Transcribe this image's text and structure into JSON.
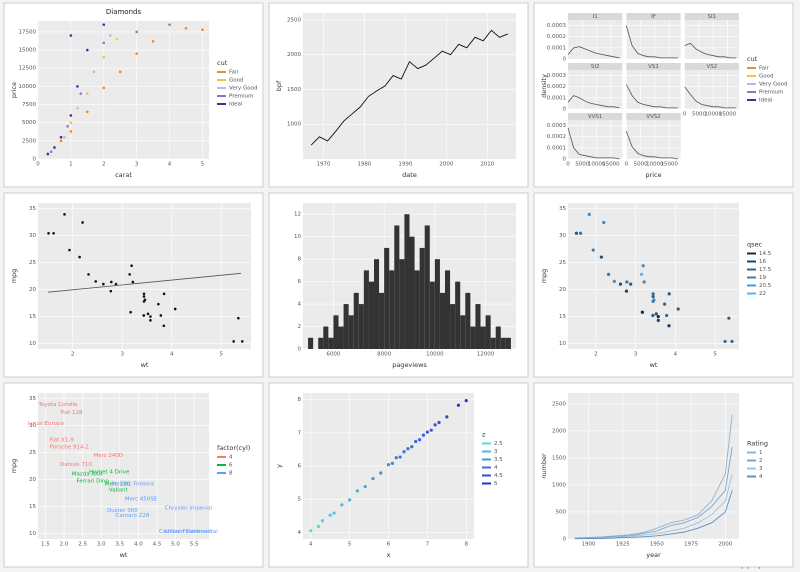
{
  "chart_data": [
    {
      "type": "scatter",
      "title": "Diamonds",
      "xlabel": "carat",
      "ylabel": "price",
      "xlim": [
        0,
        5.2
      ],
      "xticks": [
        0,
        1,
        2,
        3,
        4,
        5
      ],
      "ylim": [
        0,
        19000
      ],
      "yticks": [
        0,
        2500,
        5000,
        7500,
        10000,
        12500,
        15000,
        17500
      ],
      "legend_title": "cut",
      "series": [
        {
          "name": "Fair",
          "color": "#f08a24",
          "x": [
            0.7,
            1.0,
            1.5,
            2.0,
            2.5,
            3.0,
            3.5,
            4.5,
            5.0
          ],
          "values": [
            2500,
            3800,
            6500,
            9800,
            12000,
            14500,
            16200,
            18000,
            17800
          ]
        },
        {
          "name": "Good",
          "color": "#f5c242",
          "x": [
            0.5,
            1.0,
            1.5,
            2.0,
            2.4
          ],
          "values": [
            1500,
            5000,
            9000,
            14000,
            16500
          ]
        },
        {
          "name": "Very Good",
          "color": "#c9b3e6",
          "x": [
            0.3,
            0.8,
            1.2,
            1.7,
            2.2
          ],
          "values": [
            600,
            3000,
            7000,
            12000,
            17000
          ]
        },
        {
          "name": "Premium",
          "color": "#9272c8",
          "x": [
            0.4,
            0.9,
            1.3,
            2.0,
            3.0,
            4.0
          ],
          "values": [
            1000,
            4500,
            9000,
            16000,
            17500,
            18500
          ]
        },
        {
          "name": "Ideal",
          "color": "#4a2b96",
          "x": [
            0.3,
            0.5,
            0.7,
            1.0,
            1.0,
            1.2,
            1.5,
            2.0
          ],
          "values": [
            700,
            1600,
            3000,
            6000,
            17000,
            10000,
            15000,
            18500
          ]
        }
      ]
    },
    {
      "type": "line",
      "xlabel": "date",
      "ylabel": "bpf",
      "color": "#111111",
      "xlim": [
        1965,
        2017
      ],
      "xticks": [
        1970,
        1980,
        1990,
        2000,
        2010
      ],
      "ylim": [
        500,
        2600
      ],
      "yticks": [
        1000,
        1500,
        2000,
        2500
      ],
      "x": [
        1967,
        1969,
        1971,
        1973,
        1975,
        1977,
        1979,
        1981,
        1983,
        1985,
        1987,
        1989,
        1991,
        1993,
        1995,
        1997,
        1999,
        2001,
        2003,
        2005,
        2007,
        2009,
        2011,
        2013,
        2015
      ],
      "values": [
        700,
        820,
        760,
        900,
        1050,
        1150,
        1250,
        1400,
        1480,
        1550,
        1700,
        1650,
        1900,
        1800,
        1850,
        1950,
        2050,
        2000,
        2150,
        2100,
        2250,
        2200,
        2350,
        2250,
        2300
      ]
    },
    {
      "type": "facet-line",
      "xlabel": "price",
      "ylabel": "density",
      "line_color": "#555555",
      "x": [
        0,
        2000,
        4000,
        6000,
        8000,
        10000,
        12000,
        14000,
        16000,
        18000
      ],
      "xlim": [
        0,
        19000
      ],
      "xticks": [
        0,
        5000,
        10000,
        15000
      ],
      "ylim": [
        0,
        0.00035
      ],
      "yticks": [
        0,
        0.0001,
        0.0002,
        0.0003
      ],
      "legend_title": "cut",
      "legend_labels": [
        "Fair",
        "Good",
        "Very Good",
        "Premium",
        "Ideal"
      ],
      "legend_colors": [
        "#f08a24",
        "#f5c242",
        "#c9b3e6",
        "#9272c8",
        "#4a2b96"
      ],
      "facets": [
        {
          "title": "I1",
          "values": [
            4e-05,
            0.0001,
            0.00011,
            9e-05,
            7e-05,
            5e-05,
            4e-05,
            3e-05,
            2e-05,
            1e-05
          ]
        },
        {
          "title": "IF",
          "values": [
            0.0003,
            0.00012,
            5e-05,
            3e-05,
            2e-05,
            2e-05,
            1e-05,
            1e-05,
            1e-05,
            1e-05
          ]
        },
        {
          "title": "SI1",
          "values": [
            0.00012,
            0.00014,
            9e-05,
            6e-05,
            4e-05,
            3e-05,
            2e-05,
            2e-05,
            1e-05,
            1e-05
          ]
        },
        {
          "title": "SI2",
          "values": [
            6e-05,
            0.00012,
            0.0001,
            7e-05,
            5e-05,
            4e-05,
            3e-05,
            2e-05,
            2e-05,
            1e-05
          ]
        },
        {
          "title": "VS1",
          "values": [
            0.00022,
            0.00012,
            6e-05,
            4e-05,
            3e-05,
            2e-05,
            2e-05,
            1e-05,
            1e-05,
            1e-05
          ]
        },
        {
          "title": "VS2",
          "values": [
            0.0002,
            0.00013,
            7e-05,
            4e-05,
            3e-05,
            2e-05,
            2e-05,
            1e-05,
            1e-05,
            1e-05
          ]
        },
        {
          "title": "VVS1",
          "values": [
            0.00028,
            0.0001,
            4e-05,
            3e-05,
            2e-05,
            1e-05,
            1e-05,
            1e-05,
            1e-05,
            0
          ]
        },
        {
          "title": "VVS2",
          "values": [
            0.00025,
            0.00011,
            5e-05,
            3e-05,
            2e-05,
            2e-05,
            1e-05,
            1e-05,
            1e-05,
            0
          ]
        }
      ]
    },
    {
      "type": "scatter",
      "xlabel": "wt",
      "ylabel": "mpg",
      "color": "#111111",
      "xlim": [
        1.3,
        5.6
      ],
      "xticks": [
        2,
        3,
        4,
        5
      ],
      "ylim": [
        9,
        36
      ],
      "yticks": [
        10,
        15,
        20,
        25,
        30,
        35
      ],
      "x": [
        2.62,
        2.875,
        2.32,
        3.215,
        3.44,
        3.46,
        3.57,
        3.19,
        3.15,
        3.44,
        3.44,
        4.07,
        3.73,
        3.78,
        5.25,
        5.424,
        5.345,
        2.2,
        1.615,
        1.835,
        2.465,
        3.52,
        3.435,
        3.84,
        3.845,
        1.935,
        2.14,
        1.513,
        3.17,
        2.77,
        3.57,
        2.78
      ],
      "values": [
        21,
        21,
        22.8,
        21.4,
        18.7,
        18.1,
        14.3,
        24.4,
        22.8,
        19.2,
        17.8,
        16.4,
        17.3,
        15.2,
        10.4,
        10.4,
        14.7,
        32.4,
        30.4,
        33.9,
        21.5,
        15.5,
        15.2,
        13.3,
        19.2,
        27.3,
        26,
        30.4,
        15.8,
        19.7,
        15,
        21.4
      ],
      "fit": {
        "color": "#555555",
        "x": [
          1.5,
          5.4
        ],
        "y": [
          19.5,
          23
        ]
      }
    },
    {
      "type": "histogram",
      "xlabel": "pageviews",
      "color": "#333333",
      "xlim": [
        4800,
        13200
      ],
      "xticks": [
        6000,
        8000,
        10000,
        12000
      ],
      "ylim": [
        0,
        13
      ],
      "yticks": [
        0,
        2,
        4,
        6,
        8,
        10,
        12
      ],
      "bins": [
        5000,
        5200,
        5400,
        5600,
        5800,
        6000,
        6200,
        6400,
        6600,
        6800,
        7000,
        7200,
        7400,
        7600,
        7800,
        8000,
        8200,
        8400,
        8600,
        8800,
        9000,
        9200,
        9400,
        9600,
        9800,
        10000,
        10200,
        10400,
        10600,
        10800,
        11000,
        11200,
        11400,
        11600,
        11800,
        12000,
        12200,
        12400,
        12600,
        12800,
        13000
      ],
      "values": [
        1,
        0,
        1,
        2,
        1,
        3,
        2,
        4,
        3,
        5,
        4,
        7,
        6,
        8,
        5,
        9,
        7,
        11,
        8,
        12,
        10,
        7,
        9,
        11,
        6,
        8,
        5,
        7,
        4,
        6,
        3,
        5,
        2,
        4,
        2,
        3,
        1,
        2,
        1,
        1
      ]
    },
    {
      "type": "scatter",
      "xlabel": "wt",
      "ylabel": "mpg",
      "xlim": [
        1.3,
        5.6
      ],
      "xticks": [
        2,
        3,
        4,
        5
      ],
      "ylim": [
        9,
        36
      ],
      "yticks": [
        10,
        15,
        20,
        25,
        30,
        35
      ],
      "x": [
        2.62,
        2.875,
        2.32,
        3.215,
        3.44,
        3.46,
        3.57,
        3.19,
        3.15,
        3.44,
        3.44,
        4.07,
        3.73,
        3.78,
        5.25,
        5.424,
        5.345,
        2.2,
        1.615,
        1.835,
        2.465,
        3.52,
        3.435,
        3.84,
        3.845,
        1.935,
        2.14,
        1.513,
        3.17,
        2.77,
        3.57,
        2.78
      ],
      "values": [
        21,
        21,
        22.8,
        21.4,
        18.7,
        18.1,
        14.3,
        24.4,
        22.8,
        19.2,
        17.8,
        16.4,
        17.3,
        15.2,
        10.4,
        10.4,
        14.7,
        32.4,
        30.4,
        33.9,
        21.5,
        15.5,
        15.2,
        13.3,
        19.2,
        27.3,
        26,
        30.4,
        15.8,
        19.7,
        15,
        21.4
      ],
      "color_by": [
        16.46,
        17.02,
        18.61,
        19.44,
        17.02,
        20.22,
        15.84,
        20,
        22.9,
        18.3,
        18.9,
        17.4,
        17.6,
        18,
        17.98,
        17.82,
        17.42,
        19.47,
        18.52,
        19.9,
        20.01,
        16.87,
        17.3,
        15.41,
        17.05,
        18.9,
        16.7,
        16.9,
        14.5,
        15.5,
        14.6,
        18.6
      ],
      "color_low": "#132b43",
      "color_high": "#56b1f7",
      "legend_title": "qsec",
      "legend_values": [
        14.5,
        16,
        17.5,
        19,
        20.5,
        22
      ]
    },
    {
      "type": "text-scatter",
      "xlabel": "wt",
      "ylabel": "mpg",
      "xlim": [
        1.3,
        5.9
      ],
      "xticks": [
        1.5,
        {
          "value": 2,
          "label": "2.0"
        },
        2.5,
        {
          "value": 3,
          "label": "3.0"
        },
        3.5,
        {
          "value": 4,
          "label": "4.0"
        },
        4.5,
        {
          "value": 5,
          "label": "5.0"
        },
        5.5
      ],
      "ylim": [
        9,
        36
      ],
      "yticks": [
        10,
        15,
        20,
        25,
        30,
        35
      ],
      "legend_title": "factor(cyl)",
      "series": [
        {
          "name": "4",
          "color": "#f8766d",
          "labels": [
            "Toyota Corolla",
            "Fiat 128",
            "Lotus Europa",
            "Fiat X1-9",
            "Porsche 914-2",
            "Datsun 710",
            "Merc 240D"
          ],
          "x": [
            1.835,
            2.2,
            1.513,
            1.935,
            2.14,
            2.32,
            3.19
          ],
          "values": [
            33.9,
            32.4,
            30.4,
            27.3,
            26,
            22.8,
            24.4
          ]
        },
        {
          "name": "6",
          "color": "#00ba38",
          "labels": [
            "Mazda RX4",
            "Hornet 4 Drive",
            "Valiant",
            "Merc 280",
            "Ferrari Dino"
          ],
          "x": [
            2.62,
            3.215,
            3.46,
            3.44,
            2.77
          ],
          "values": [
            21,
            21.4,
            18.1,
            19.2,
            19.7
          ]
        },
        {
          "name": "8",
          "color": "#619cff",
          "labels": [
            "Duster 360",
            "Merc 450SE",
            "Camaro Z28",
            "Pontiac Firebird",
            "Cadillac Fleetwood",
            "Lincoln Continental",
            "Chrysler Imperial"
          ],
          "x": [
            3.57,
            4.07,
            3.84,
            3.845,
            5.25,
            5.424,
            5.345
          ],
          "values": [
            14.3,
            16.4,
            13.3,
            19.2,
            10.4,
            10.4,
            14.7
          ]
        }
      ]
    },
    {
      "type": "scatter",
      "xlabel": "x",
      "ylabel": "y",
      "xlim": [
        3.8,
        8.2
      ],
      "xticks": [
        4,
        5,
        6,
        7,
        8
      ],
      "ylim": [
        3.8,
        8.2
      ],
      "yticks": [
        4,
        5,
        6,
        7,
        8
      ],
      "x": [
        4.0,
        4.2,
        4.3,
        4.5,
        4.6,
        4.8,
        5.0,
        5.2,
        5.4,
        5.6,
        5.8,
        6.0,
        6.1,
        6.2,
        6.3,
        6.4,
        6.5,
        6.6,
        6.7,
        6.8,
        6.9,
        7.0,
        7.1,
        7.2,
        7.3,
        7.5,
        7.8,
        8.0
      ],
      "values": [
        4.05,
        4.18,
        4.35,
        4.52,
        4.58,
        4.83,
        4.98,
        5.25,
        5.38,
        5.62,
        5.79,
        6.04,
        6.08,
        6.25,
        6.27,
        6.43,
        6.52,
        6.58,
        6.74,
        6.79,
        6.93,
        7.02,
        7.08,
        7.24,
        7.31,
        7.48,
        7.83,
        7.97
      ],
      "color_by": [
        2.47,
        2.59,
        2.66,
        2.79,
        2.84,
        2.97,
        3.08,
        3.22,
        3.33,
        3.47,
        3.58,
        3.72,
        3.77,
        3.84,
        3.89,
        3.96,
        4.03,
        4.08,
        4.15,
        4.2,
        4.27,
        4.33,
        4.39,
        4.46,
        4.52,
        4.64,
        4.83,
        4.95
      ],
      "color_low": "#5ad8e6",
      "color_high": "#2632c8",
      "legend_title": "z",
      "legend_values": [
        2.5,
        3,
        3.5,
        4,
        4.5,
        5
      ]
    },
    {
      "type": "line",
      "xlabel": "year",
      "ylabel": "number",
      "xlim": [
        1885,
        2010
      ],
      "xticks": [
        1900,
        1925,
        1950,
        1975,
        2000
      ],
      "ylim": [
        0,
        2700
      ],
      "yticks": [
        0,
        500,
        1000,
        1500,
        2000,
        2500
      ],
      "legend_title": "Rating",
      "x": [
        1890,
        1900,
        1910,
        1920,
        1930,
        1940,
        1950,
        1960,
        1970,
        1980,
        1990,
        2000,
        2005
      ],
      "series": [
        {
          "name": "1",
          "color": "#8fb3d3",
          "values": [
            20,
            30,
            40,
            60,
            80,
            120,
            200,
            300,
            350,
            450,
            700,
            1200,
            2300
          ]
        },
        {
          "name": "2",
          "color": "#7aa6cc",
          "values": [
            10,
            20,
            30,
            50,
            60,
            100,
            150,
            250,
            300,
            400,
            600,
            900,
            1700
          ]
        },
        {
          "name": "3",
          "color": "#9cc3e0",
          "values": [
            5,
            10,
            20,
            30,
            50,
            70,
            100,
            150,
            200,
            300,
            450,
            700,
            1200
          ]
        },
        {
          "name": "4",
          "color": "#5e8fbf",
          "values": [
            5,
            5,
            10,
            20,
            30,
            40,
            60,
            90,
            130,
            200,
            300,
            500,
            900
          ]
        }
      ]
    }
  ],
  "watermark": "www.ispphp.online"
}
